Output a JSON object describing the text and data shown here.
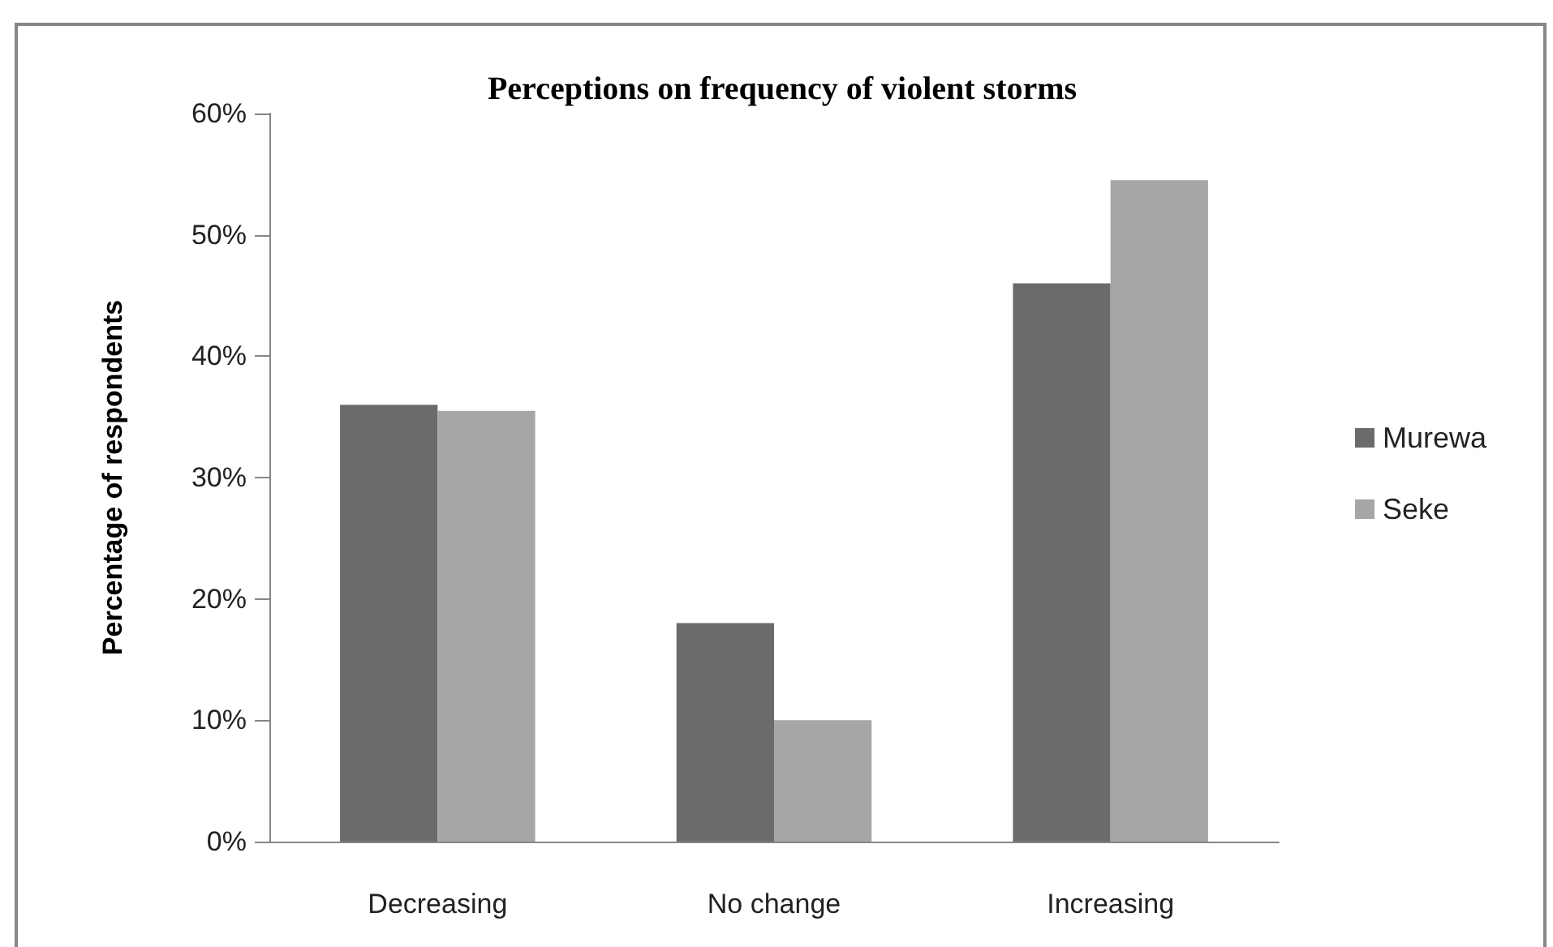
{
  "chart_data": {
    "type": "bar",
    "title": "Perceptions on frequency of violent storms",
    "ylabel": "Percentage of respondents",
    "categories": [
      "Decreasing",
      "No change",
      "Increasing"
    ],
    "series": [
      {
        "name": "Murewa",
        "color": "#6b6b6b",
        "values": [
          36,
          18,
          46
        ]
      },
      {
        "name": "Seke",
        "color": "#a6a6a6",
        "values": [
          35.5,
          10,
          54.5
        ]
      }
    ],
    "ylim": [
      0,
      60
    ],
    "yticks": [
      {
        "value": 0,
        "label": "0%"
      },
      {
        "value": 10,
        "label": "10%"
      },
      {
        "value": 20,
        "label": "20%"
      },
      {
        "value": 30,
        "label": "30%"
      },
      {
        "value": 40,
        "label": "40%"
      },
      {
        "value": 50,
        "label": "50%"
      },
      {
        "value": 60,
        "label": "60%"
      }
    ],
    "grid": false,
    "legend": "right"
  }
}
